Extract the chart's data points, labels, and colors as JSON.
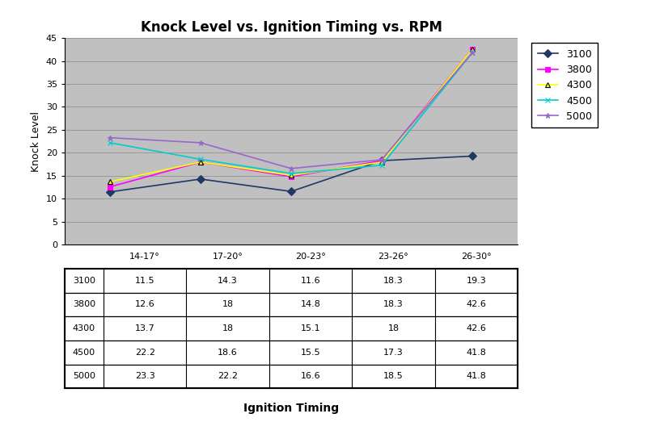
{
  "title": "Knock Level vs. Ignition Timing vs. RPM",
  "xlabel": "Ignition Timing",
  "ylabel": "Knock Level",
  "x_labels": [
    "14-17°",
    "17-20°",
    "20-23°",
    "23-26°",
    "26-30°"
  ],
  "series": [
    {
      "label": "3100",
      "color": "#1F3864",
      "marker": "D",
      "values": [
        11.5,
        14.3,
        11.6,
        18.3,
        19.3
      ]
    },
    {
      "label": "3800",
      "color": "#FF00FF",
      "marker": "s",
      "values": [
        12.6,
        18.0,
        14.8,
        18.3,
        42.6
      ]
    },
    {
      "label": "4300",
      "color": "#FFFF00",
      "marker": "^",
      "values": [
        13.7,
        18.0,
        15.1,
        18.0,
        42.6
      ]
    },
    {
      "label": "4500",
      "color": "#00CCCC",
      "marker": "x",
      "values": [
        22.2,
        18.6,
        15.5,
        17.3,
        41.8
      ]
    },
    {
      "label": "5000",
      "color": "#9966CC",
      "marker": "*",
      "values": [
        23.3,
        22.2,
        16.6,
        18.5,
        41.8
      ]
    }
  ],
  "ylim": [
    0,
    45
  ],
  "yticks": [
    0,
    5,
    10,
    15,
    20,
    25,
    30,
    35,
    40,
    45
  ],
  "table_rows": [
    "3100",
    "3800",
    "4300",
    "4500",
    "5000"
  ],
  "table_data": [
    [
      11.5,
      14.3,
      11.6,
      18.3,
      19.3
    ],
    [
      12.6,
      18.0,
      14.8,
      18.3,
      42.6
    ],
    [
      13.7,
      18.0,
      15.1,
      18.0,
      42.6
    ],
    [
      22.2,
      18.6,
      15.5,
      17.3,
      41.8
    ],
    [
      23.3,
      22.2,
      16.6,
      18.5,
      41.8
    ]
  ],
  "plot_area_color": "#C0C0C0",
  "fig_bg_color": "#FFFFFF",
  "grid_color": "#888888"
}
